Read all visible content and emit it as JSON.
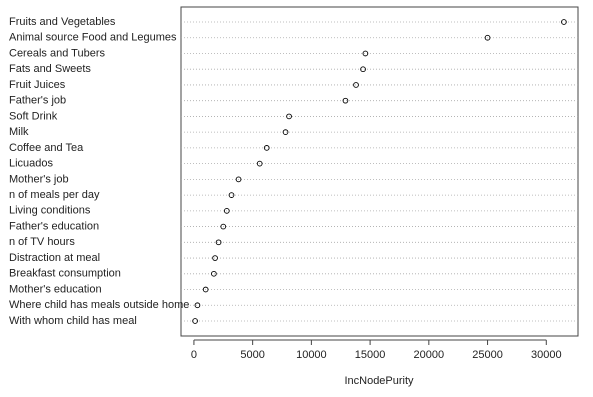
{
  "chart_data": {
    "type": "dot",
    "categories": [
      "Fruits and Vegetables",
      "Animal source Food and Legumes",
      "Cereals and Tubers",
      "Fats and Sweets",
      "Fruit Juices",
      "Father's job",
      "Soft Drink",
      "Milk",
      "Coffee and Tea",
      "Licuados",
      "Mother's job",
      "n of meals per day",
      "Living conditions",
      "Father's education",
      "n of TV hours",
      "Distraction at meal",
      "Breakfast consumption",
      "Mother's education",
      "Where child has meals outside home",
      "With whom child has meal"
    ],
    "values": [
      31500,
      25000,
      14600,
      14400,
      13800,
      12900,
      8100,
      7800,
      6200,
      5600,
      3800,
      3200,
      2800,
      2500,
      2100,
      1800,
      1700,
      1000,
      300,
      100
    ],
    "x_label": "IncNodePurity",
    "xlim": [
      -1100,
      32700
    ],
    "xticks": [
      0,
      5000,
      10000,
      15000,
      20000,
      25000,
      30000
    ],
    "color": "#000000"
  }
}
